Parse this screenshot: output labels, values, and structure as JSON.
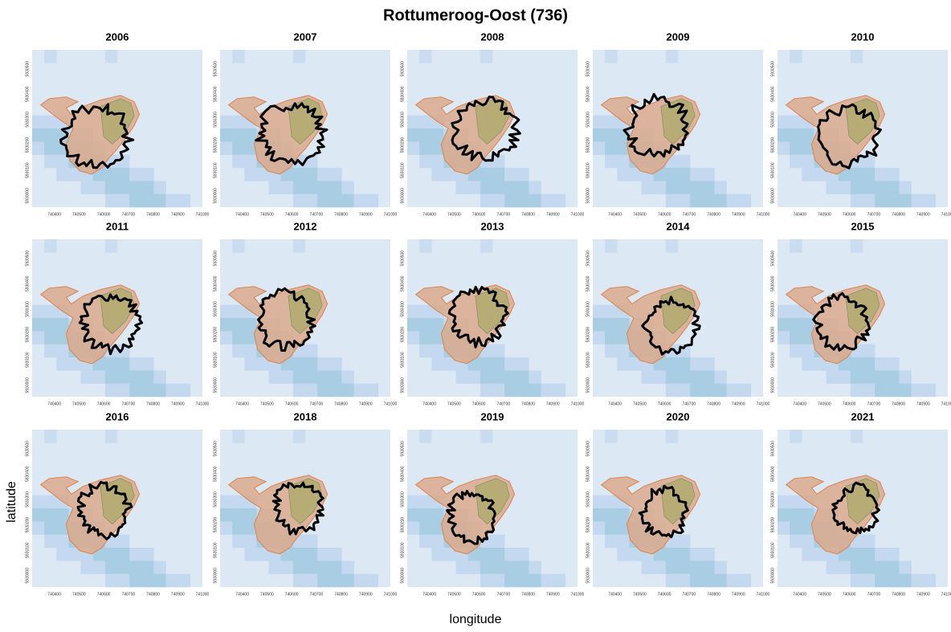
{
  "chart_data": {
    "type": "map",
    "title": "Rottumeroog-Oost (736)",
    "x_label": "longitude",
    "y_label": "latitude",
    "xlim": [
      740310,
      741000
    ],
    "ylim": [
      5929955,
      5930575
    ],
    "xticks": [
      740400,
      740500,
      740600,
      740700,
      740800,
      740900,
      741000
    ],
    "yticks": [
      5930000,
      5930100,
      5930200,
      5930300,
      5930400,
      5930500
    ],
    "panels": [
      {
        "title": "2006"
      },
      {
        "title": "2007"
      },
      {
        "title": "2008"
      },
      {
        "title": "2009"
      },
      {
        "title": "2010"
      },
      {
        "title": "2011"
      },
      {
        "title": "2012"
      },
      {
        "title": "2013"
      },
      {
        "title": "2014"
      },
      {
        "title": "2015"
      },
      {
        "title": "2016"
      },
      {
        "title": "2018"
      },
      {
        "title": "2019"
      },
      {
        "title": "2020"
      },
      {
        "title": "2021"
      }
    ]
  }
}
